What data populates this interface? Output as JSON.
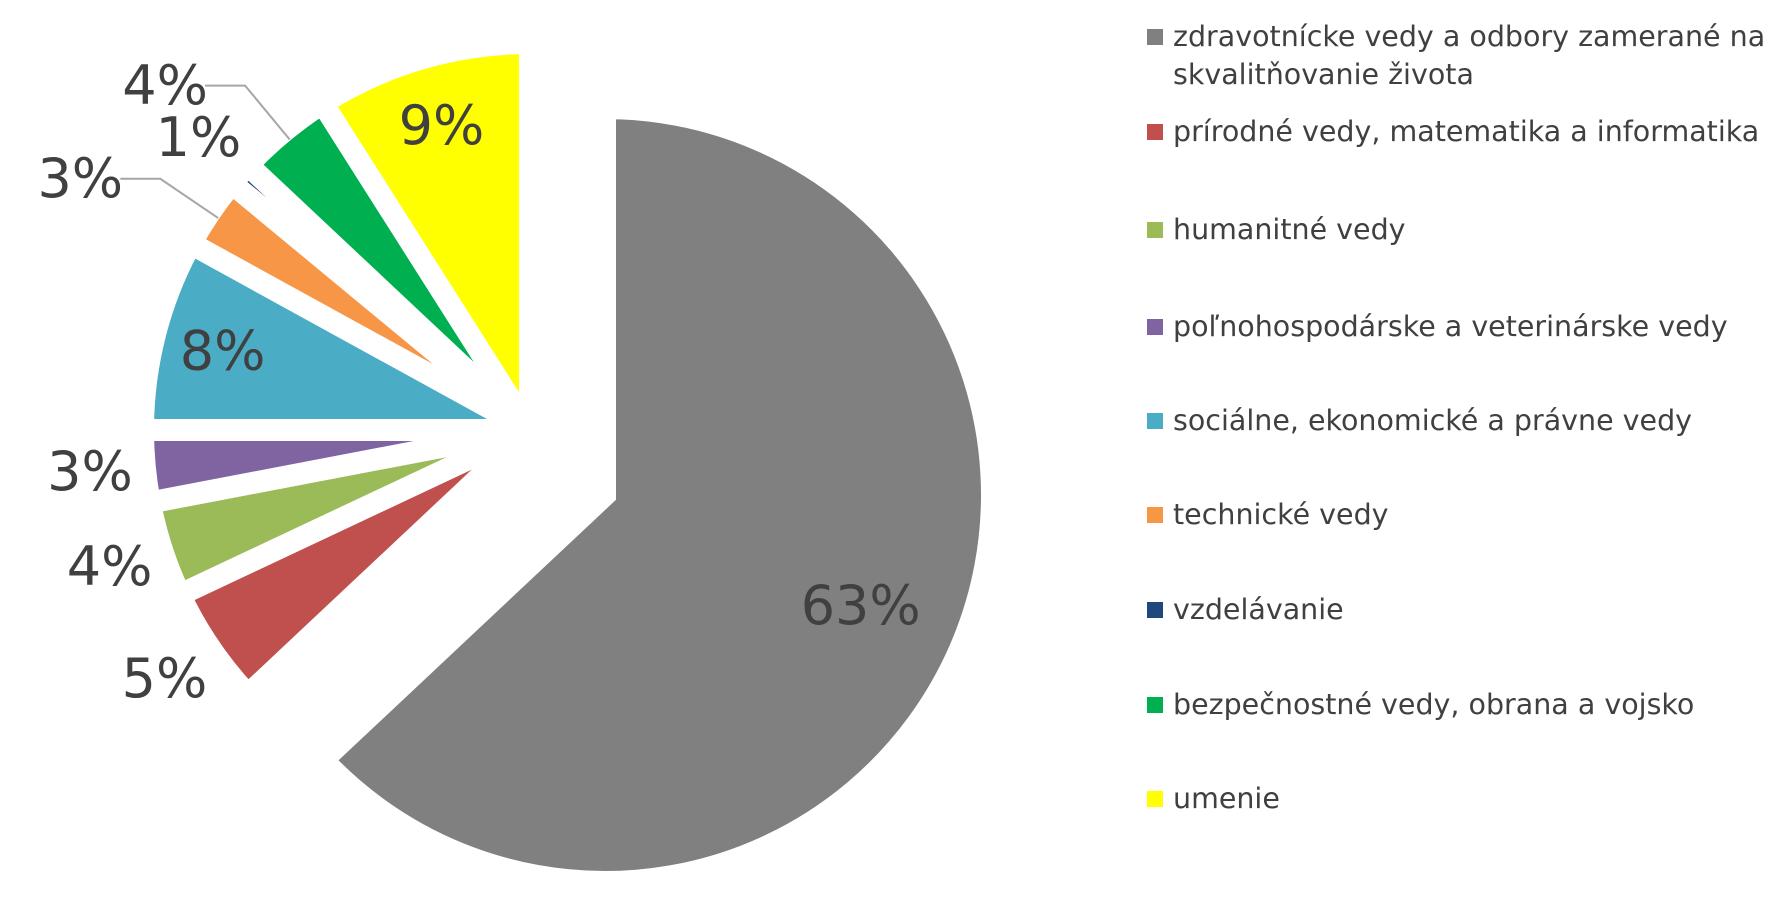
{
  "chart_data": {
    "type": "pie",
    "exploded": true,
    "legend_position": "right",
    "slices": [
      {
        "label": "zdravotnícke vedy a odbory zamerané na skvalitňovanie života",
        "value": 63,
        "data_label": "63%",
        "color": "#808080"
      },
      {
        "label": "prírodné vedy, matematika a informatika",
        "value": 5,
        "data_label": "5%",
        "color": "#C0504D"
      },
      {
        "label": "humanitné vedy",
        "value": 4,
        "data_label": "4%",
        "color": "#9BBB59"
      },
      {
        "label": "poľnohospodárske a veterinárske vedy",
        "value": 3,
        "data_label": "3%",
        "color": "#8064A2"
      },
      {
        "label": "sociálne, ekonomické a právne vedy",
        "value": 8,
        "data_label": "8%",
        "color": "#4BACC6"
      },
      {
        "label": "technické vedy",
        "value": 3,
        "data_label": "3%",
        "color": "#F79646"
      },
      {
        "label": "vzdelávanie",
        "value": 1,
        "data_label": "1%",
        "color": "#1F497D"
      },
      {
        "label": "bezpečnostné vedy, obrana a vojsko",
        "value": 4,
        "data_label": "4%",
        "color": "#00B050"
      },
      {
        "label": "umenie",
        "value": 9,
        "data_label": "9%",
        "color": "#FFFF00"
      }
    ]
  }
}
